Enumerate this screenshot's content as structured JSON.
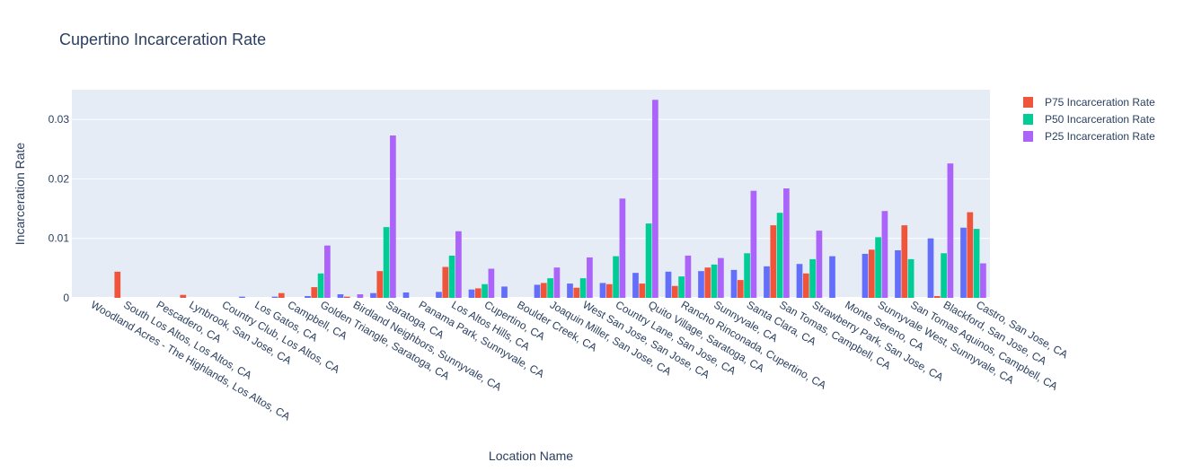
{
  "chart_data": {
    "type": "bar",
    "title": "Cupertino Incarceration Rate",
    "xlabel": "Location Name",
    "ylabel": "Incarceration Rate",
    "ylim": [
      0,
      0.035
    ],
    "yticks": [
      0,
      0.01,
      0.02,
      0.03
    ],
    "ytick_labels": [
      "0",
      "0.01",
      "0.02",
      "0.03"
    ],
    "grid": true,
    "legend_position": "top-right",
    "plot_bgcolor": "#e5ecf6",
    "categories": [
      "Woodland Acres - The Highlands, Los Altos, CA",
      "South Los Altos, Los Altos, CA",
      "Pescadero, CA",
      "Lynbrook, San Jose, CA",
      "Country Club, Los Altos, CA",
      "Los Gatos, CA",
      "Campbell, CA",
      "Golden Triangle, Saratoga, CA",
      "Birdland Neighbors, Sunnyvale, CA",
      "Saratoga, CA",
      "Panama Park, Sunnyvale, CA",
      "Los Altos Hills, CA",
      "Cupertino, CA",
      "Boulder Creek, CA",
      "Joaquin Miller, San Jose, CA",
      "West San Jose, San Jose, CA",
      "Country Lane, San Jose, CA",
      "Quito Village, Saratoga, CA",
      "Rancho Rinconada, Cupertino, CA",
      "Sunnyvale, CA",
      "Santa Clara, CA",
      "San Tomas, Campbell, CA",
      "Strawberry Park, San Jose, CA",
      "Monte Sereno, CA",
      "Sunnyvale West, Sunnyvale, CA",
      "San Tomas Aquinos, Campbell, CA",
      "Blackford, San Jose, CA",
      "Castro, San Jose, CA"
    ],
    "series": [
      {
        "name": "",
        "color": "#636efa",
        "values": [
          0,
          0,
          0,
          0,
          0,
          0.0002,
          0.0002,
          0.0003,
          0.0006,
          0.0008,
          0.0009,
          0.001,
          0.0014,
          0.0019,
          0.0022,
          0.0024,
          0.0025,
          0.0042,
          0.0044,
          0.0045,
          0.0047,
          0.0053,
          0.0057,
          0.007,
          0.0074,
          0.008,
          0.01,
          0.0118
        ]
      },
      {
        "name": "P75 Incarceration Rate",
        "color": "#ef553b",
        "values": [
          0,
          0.0044,
          0,
          0.0005,
          0,
          0,
          0.0008,
          0.0018,
          0.0002,
          0.0045,
          0,
          0.0052,
          0.0016,
          0,
          0.0025,
          0.0017,
          0.0023,
          0.0024,
          0.002,
          0.0051,
          0.003,
          0.0122,
          0.0041,
          0,
          0.0081,
          0.0122,
          0.0003,
          0.0144
        ]
      },
      {
        "name": "P50 Incarceration Rate",
        "color": "#00cc96",
        "values": [
          0,
          0,
          0,
          0,
          0,
          0,
          0,
          0.0041,
          0,
          0.0119,
          0,
          0.0071,
          0.0023,
          0,
          0.0033,
          0.0033,
          0.007,
          0.0125,
          0.0036,
          0.0056,
          0.0075,
          0.0143,
          0.0065,
          0,
          0.0102,
          0.0065,
          0.0075,
          0.0116
        ]
      },
      {
        "name": "P25 Incarceration Rate",
        "color": "#ab63fa",
        "values": [
          0,
          0,
          0,
          0,
          0,
          0,
          0,
          0.0088,
          0.0006,
          0.0273,
          0,
          0.0112,
          0.0049,
          0,
          0.0051,
          0.0068,
          0.0167,
          0.0333,
          0.0071,
          0.0067,
          0.018,
          0.0184,
          0.0113,
          0,
          0.0146,
          0,
          0.0226,
          0.0058
        ]
      }
    ]
  }
}
